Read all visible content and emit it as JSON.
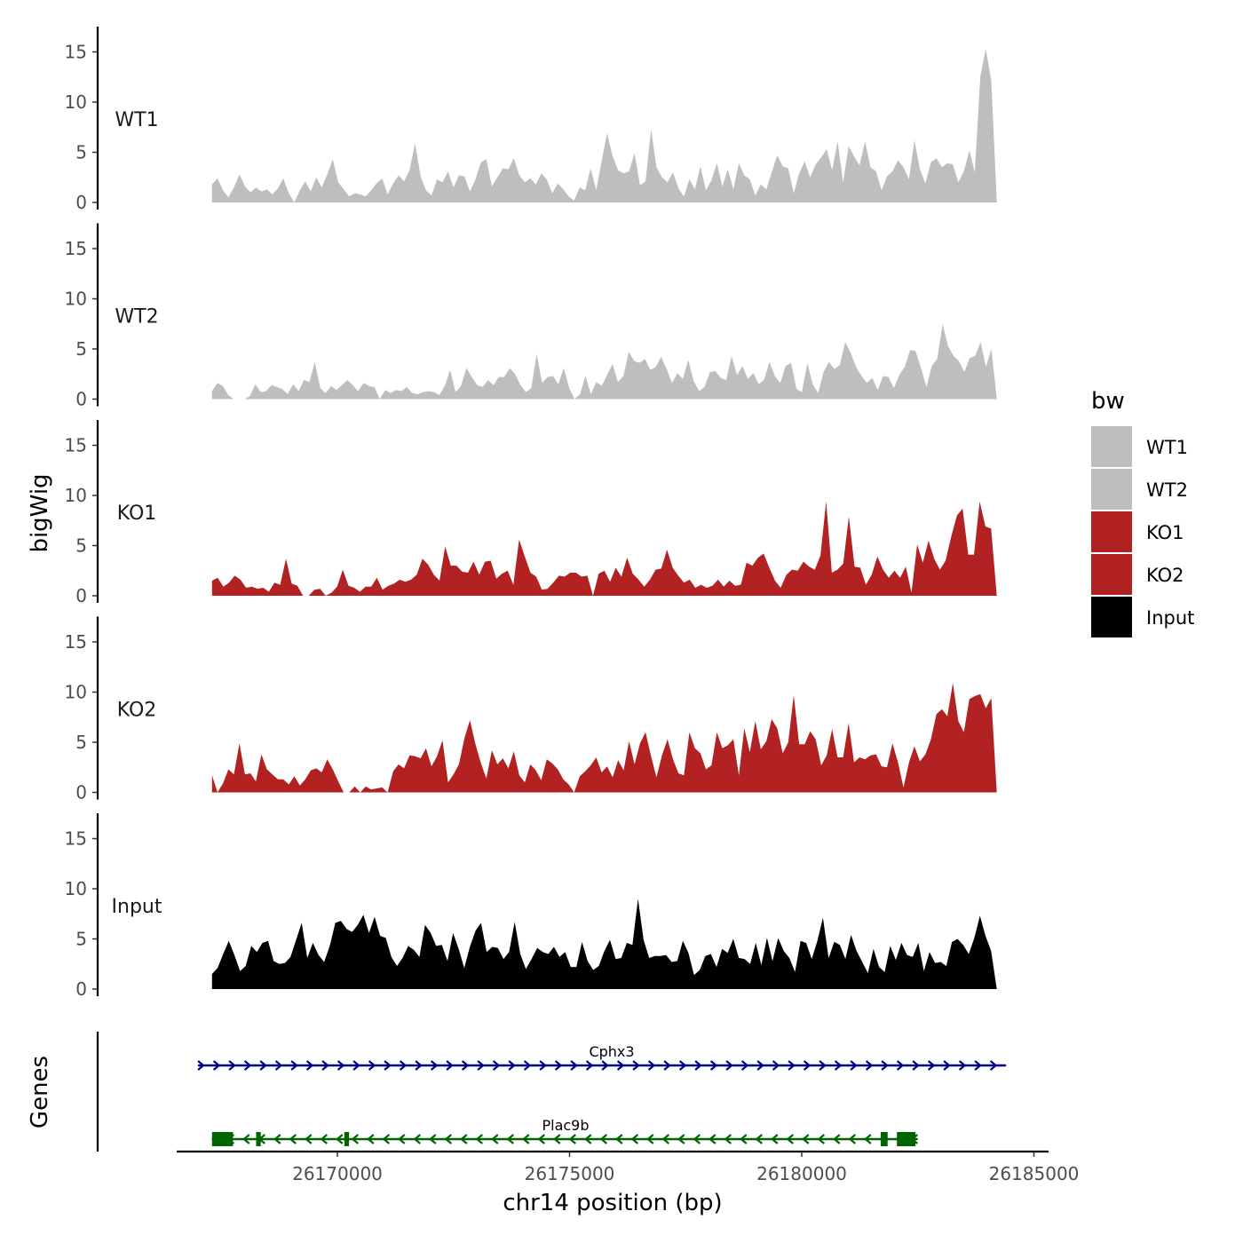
{
  "chart_data": {
    "type": "area",
    "ylabel": "bigWig",
    "xlabel": "chr14 position (bp)",
    "genes_label": "Genes",
    "xlim": [
      26166500,
      26185000
    ],
    "x_ticks": [
      "26170000",
      "26175000",
      "26180000",
      "26185000"
    ],
    "x_tick_values": [
      26170000,
      26175000,
      26180000,
      26185000
    ],
    "ylim": [
      0,
      17
    ],
    "y_ticks": [
      "0",
      "5",
      "10",
      "15"
    ],
    "y_tick_values": [
      0,
      5,
      10,
      15
    ],
    "signal_start": 26167300,
    "signal_end": 26184200,
    "legend": {
      "title": "bw",
      "entries": [
        {
          "label": "WT1",
          "color": "#bebebe"
        },
        {
          "label": "WT2",
          "color": "#bebebe"
        },
        {
          "label": "KO1",
          "color": "#b22222"
        },
        {
          "label": "KO2",
          "color": "#b22222"
        },
        {
          "label": "Input",
          "color": "#000000"
        }
      ]
    },
    "series": [
      {
        "name": "WT1",
        "color": "#bebebe",
        "values": [
          1.8,
          2.4,
          1.2,
          0.5,
          1.5,
          2.8,
          1.6,
          1.0,
          1.5,
          1.1,
          1.3,
          0.8,
          1.4,
          2.4,
          0.9,
          0.0,
          1.2,
          2.1,
          1.1,
          2.5,
          1.5,
          2.8,
          4.3,
          2.0,
          1.3,
          0.6,
          0.9,
          0.8,
          0.6,
          1.2,
          1.9,
          2.4,
          0.8,
          1.9,
          2.7,
          2.1,
          3.2,
          5.9,
          2.6,
          1.2,
          0.7,
          2.3,
          2.0,
          3.1,
          1.5,
          2.7,
          2.6,
          1.1,
          2.3,
          4.0,
          4.3,
          1.6,
          2.5,
          3.4,
          3.3,
          4.4,
          2.7,
          2.0,
          2.4,
          1.8,
          2.9,
          2.3,
          0.9,
          1.9,
          1.3,
          0.6,
          0.2,
          1.5,
          1.2,
          3.4,
          1.2,
          4.1,
          6.9,
          4.6,
          3.2,
          2.9,
          3.1,
          4.9,
          1.7,
          2.1,
          7.3,
          3.5,
          2.5,
          2.0,
          3.0,
          1.4,
          0.6,
          2.3,
          1.3,
          3.6,
          1.2,
          2.2,
          3.9,
          1.6,
          3.3,
          1.3,
          3.9,
          2.7,
          2.3,
          0.7,
          1.8,
          1.3,
          3.0,
          4.7,
          3.6,
          3.4,
          0.9,
          2.9,
          4.1,
          2.5,
          3.8,
          4.5,
          5.3,
          3.2,
          6.1,
          2.0,
          5.6,
          4.6,
          3.7,
          6.1,
          3.5,
          3.1,
          1.2,
          2.6,
          3.1,
          4.2,
          3.5,
          2.3,
          6.2,
          3.3,
          1.9,
          4.0,
          4.4,
          3.5,
          3.9,
          3.8,
          2.0,
          3.1,
          5.2,
          3.0,
          12.5,
          15.3,
          12.1,
          0.0
        ]
      },
      {
        "name": "WT2",
        "color": "#bebebe",
        "values": [
          0.8,
          1.6,
          1.3,
          0.4,
          0.0,
          0.0,
          0.0,
          0.3,
          1.5,
          0.7,
          0.8,
          1.4,
          1.2,
          1.0,
          0.5,
          1.5,
          0.8,
          1.9,
          1.7,
          3.7,
          1.1,
          0.6,
          1.3,
          0.9,
          1.4,
          1.9,
          1.4,
          0.8,
          1.6,
          1.3,
          1.2,
          0.0,
          0.9,
          0.6,
          0.9,
          0.8,
          1.2,
          0.6,
          0.5,
          0.7,
          0.8,
          0.7,
          0.4,
          1.3,
          2.9,
          0.7,
          1.3,
          3.1,
          2.2,
          1.4,
          1.2,
          1.9,
          1.4,
          2.2,
          2.2,
          3.1,
          2.5,
          1.4,
          0.7,
          1.1,
          4.5,
          1.6,
          2.2,
          2.3,
          1.5,
          3.1,
          1.1,
          0.0,
          0.5,
          2.3,
          0.5,
          1.7,
          1.3,
          2.4,
          3.5,
          1.7,
          2.3,
          4.7,
          3.8,
          3.6,
          4.0,
          2.9,
          3.2,
          4.2,
          3.0,
          1.6,
          2.6,
          2.0,
          3.9,
          1.8,
          0.8,
          1.2,
          2.7,
          2.8,
          2.1,
          1.9,
          4.3,
          2.4,
          3.3,
          2.0,
          2.6,
          1.5,
          1.9,
          3.7,
          2.3,
          1.6,
          3.3,
          3.6,
          1.0,
          0.7,
          3.6,
          1.5,
          0.6,
          2.7,
          3.7,
          3.0,
          3.4,
          5.7,
          4.6,
          3.2,
          2.3,
          1.6,
          2.1,
          0.9,
          2.3,
          2.2,
          1.1,
          2.4,
          3.2,
          4.9,
          4.8,
          3.1,
          1.2,
          3.3,
          4.0,
          7.5,
          5.3,
          4.3,
          3.8,
          2.7,
          4.1,
          4.3,
          5.7,
          3.2,
          5.0,
          0.0
        ]
      },
      {
        "name": "KO1",
        "color": "#b22222",
        "values": [
          1.5,
          1.8,
          0.9,
          1.3,
          2.0,
          1.6,
          0.8,
          0.9,
          0.7,
          0.8,
          0.4,
          1.3,
          1.1,
          3.7,
          1.2,
          1.0,
          0.0,
          0.0,
          0.6,
          0.7,
          0.0,
          0.3,
          0.9,
          2.6,
          1.0,
          0.8,
          0.4,
          0.9,
          0.9,
          1.8,
          0.6,
          1.0,
          1.2,
          1.6,
          1.4,
          1.6,
          2.1,
          3.7,
          3.1,
          2.1,
          1.5,
          4.9,
          3.0,
          3.0,
          2.4,
          2.3,
          3.4,
          2.1,
          3.4,
          3.5,
          1.7,
          2.2,
          2.5,
          1.1,
          5.6,
          3.9,
          2.3,
          1.9,
          0.6,
          0.7,
          1.3,
          2.0,
          1.9,
          2.3,
          2.3,
          1.9,
          2.0,
          0.0,
          2.2,
          2.5,
          1.4,
          2.8,
          1.9,
          3.8,
          2.2,
          1.6,
          0.9,
          1.6,
          2.6,
          2.7,
          4.6,
          2.8,
          2.0,
          1.3,
          1.6,
          0.8,
          1.1,
          0.8,
          1.0,
          1.6,
          0.9,
          1.5,
          1.0,
          1.1,
          3.3,
          3.0,
          3.8,
          4.2,
          2.8,
          1.5,
          0.8,
          2.1,
          2.6,
          2.5,
          3.4,
          2.9,
          2.6,
          4.0,
          9.4,
          2.3,
          2.6,
          3.2,
          7.9,
          2.9,
          2.8,
          1.1,
          2.1,
          3.9,
          2.6,
          1.8,
          2.5,
          1.8,
          2.9,
          0.3,
          5.1,
          3.3,
          5.5,
          3.7,
          2.6,
          3.5,
          5.9,
          8.0,
          8.7,
          4.1,
          4.1,
          9.4,
          6.9,
          6.7,
          0.0
        ]
      },
      {
        "name": "KO2",
        "color": "#b22222",
        "values": [
          1.7,
          0.0,
          0.9,
          2.3,
          1.8,
          4.9,
          1.8,
          1.9,
          1.1,
          3.8,
          2.3,
          1.8,
          1.3,
          1.3,
          0.8,
          1.6,
          0.7,
          1.3,
          2.2,
          2.4,
          2.0,
          3.3,
          2.3,
          1.1,
          0.0,
          0.0,
          0.6,
          0.0,
          0.6,
          0.3,
          0.4,
          0.5,
          0.0,
          2.1,
          2.8,
          2.4,
          3.7,
          3.6,
          3.4,
          4.4,
          2.6,
          3.6,
          5.2,
          1.0,
          1.8,
          2.8,
          5.4,
          7.2,
          4.8,
          2.9,
          1.4,
          4.2,
          2.8,
          3.4,
          2.4,
          4.1,
          1.7,
          1.0,
          2.8,
          2.2,
          1.2,
          3.3,
          2.9,
          2.3,
          1.3,
          0.8,
          0.0,
          1.6,
          2.1,
          2.7,
          3.5,
          2.0,
          2.6,
          1.5,
          3.2,
          2.2,
          5.1,
          2.8,
          4.9,
          6.0,
          3.6,
          1.5,
          3.7,
          5.3,
          3.3,
          1.9,
          1.7,
          6.0,
          4.4,
          3.9,
          2.3,
          2.7,
          6.0,
          4.4,
          4.7,
          5.3,
          1.7,
          6.4,
          4.0,
          7.1,
          4.3,
          5.1,
          7.3,
          6.4,
          3.9,
          5.0,
          9.7,
          4.8,
          4.8,
          6.1,
          5.3,
          2.7,
          3.7,
          6.3,
          3.5,
          3.5,
          6.9,
          3.0,
          3.5,
          3.3,
          3.7,
          3.8,
          2.6,
          2.5,
          4.9,
          3.0,
          0.5,
          3.0,
          4.6,
          3.1,
          3.8,
          5.3,
          7.8,
          8.3,
          7.6,
          10.9,
          7.1,
          6.0,
          9.3,
          9.6,
          9.8,
          8.4,
          9.4,
          0.0
        ]
      },
      {
        "name": "Input",
        "color": "#000000",
        "values": [
          1.5,
          2.1,
          3.5,
          4.8,
          3.4,
          1.8,
          2.3,
          4.3,
          3.7,
          4.6,
          4.8,
          2.8,
          2.5,
          2.6,
          3.2,
          4.9,
          6.6,
          3.1,
          4.6,
          3.4,
          2.7,
          4.3,
          6.6,
          6.8,
          6.0,
          5.7,
          6.4,
          7.4,
          5.6,
          7.2,
          5.3,
          5.1,
          3.2,
          2.3,
          3.1,
          4.3,
          3.9,
          3.2,
          6.4,
          5.6,
          4.3,
          4.4,
          2.8,
          5.6,
          4.0,
          2.1,
          4.2,
          5.8,
          6.6,
          3.7,
          4.2,
          4.1,
          3.0,
          3.7,
          6.7,
          3.5,
          2.0,
          3.0,
          4.1,
          3.7,
          3.5,
          4.2,
          3.2,
          3.7,
          2.2,
          2.2,
          4.7,
          2.8,
          1.9,
          2.3,
          3.8,
          4.9,
          3.0,
          3.1,
          4.6,
          4.4,
          9.0,
          4.9,
          3.1,
          3.3,
          3.3,
          3.4,
          2.7,
          2.8,
          4.8,
          3.6,
          1.4,
          1.9,
          3.3,
          3.5,
          2.2,
          4.0,
          3.6,
          5.0,
          3.1,
          3.0,
          2.5,
          4.6,
          2.4,
          5.1,
          2.8,
          5.1,
          3.8,
          3.1,
          1.7,
          4.8,
          4.6,
          3.0,
          4.8,
          7.1,
          3.1,
          4.7,
          4.4,
          3.0,
          5.4,
          3.8,
          2.7,
          1.6,
          4.0,
          2.2,
          1.7,
          4.3,
          2.9,
          4.6,
          3.4,
          3.2,
          4.6,
          1.8,
          3.7,
          2.6,
          2.7,
          2.3,
          4.7,
          5.0,
          4.4,
          3.5,
          5.1,
          7.3,
          5.3,
          3.8,
          0.0
        ]
      }
    ],
    "genes": [
      {
        "name": "Cphx3",
        "color": "#00008b",
        "start": 26167000,
        "end": 26184400,
        "strand": "+",
        "exons": []
      },
      {
        "name": "Plac9b",
        "color": "#006400",
        "start": 26167300,
        "end": 26182500,
        "strand": "-",
        "exons": [
          [
            26167300,
            26167750
          ],
          [
            26168250,
            26168350
          ],
          [
            26170150,
            26170250
          ],
          [
            26181700,
            26181850
          ],
          [
            26182050,
            26182450
          ]
        ]
      }
    ]
  }
}
